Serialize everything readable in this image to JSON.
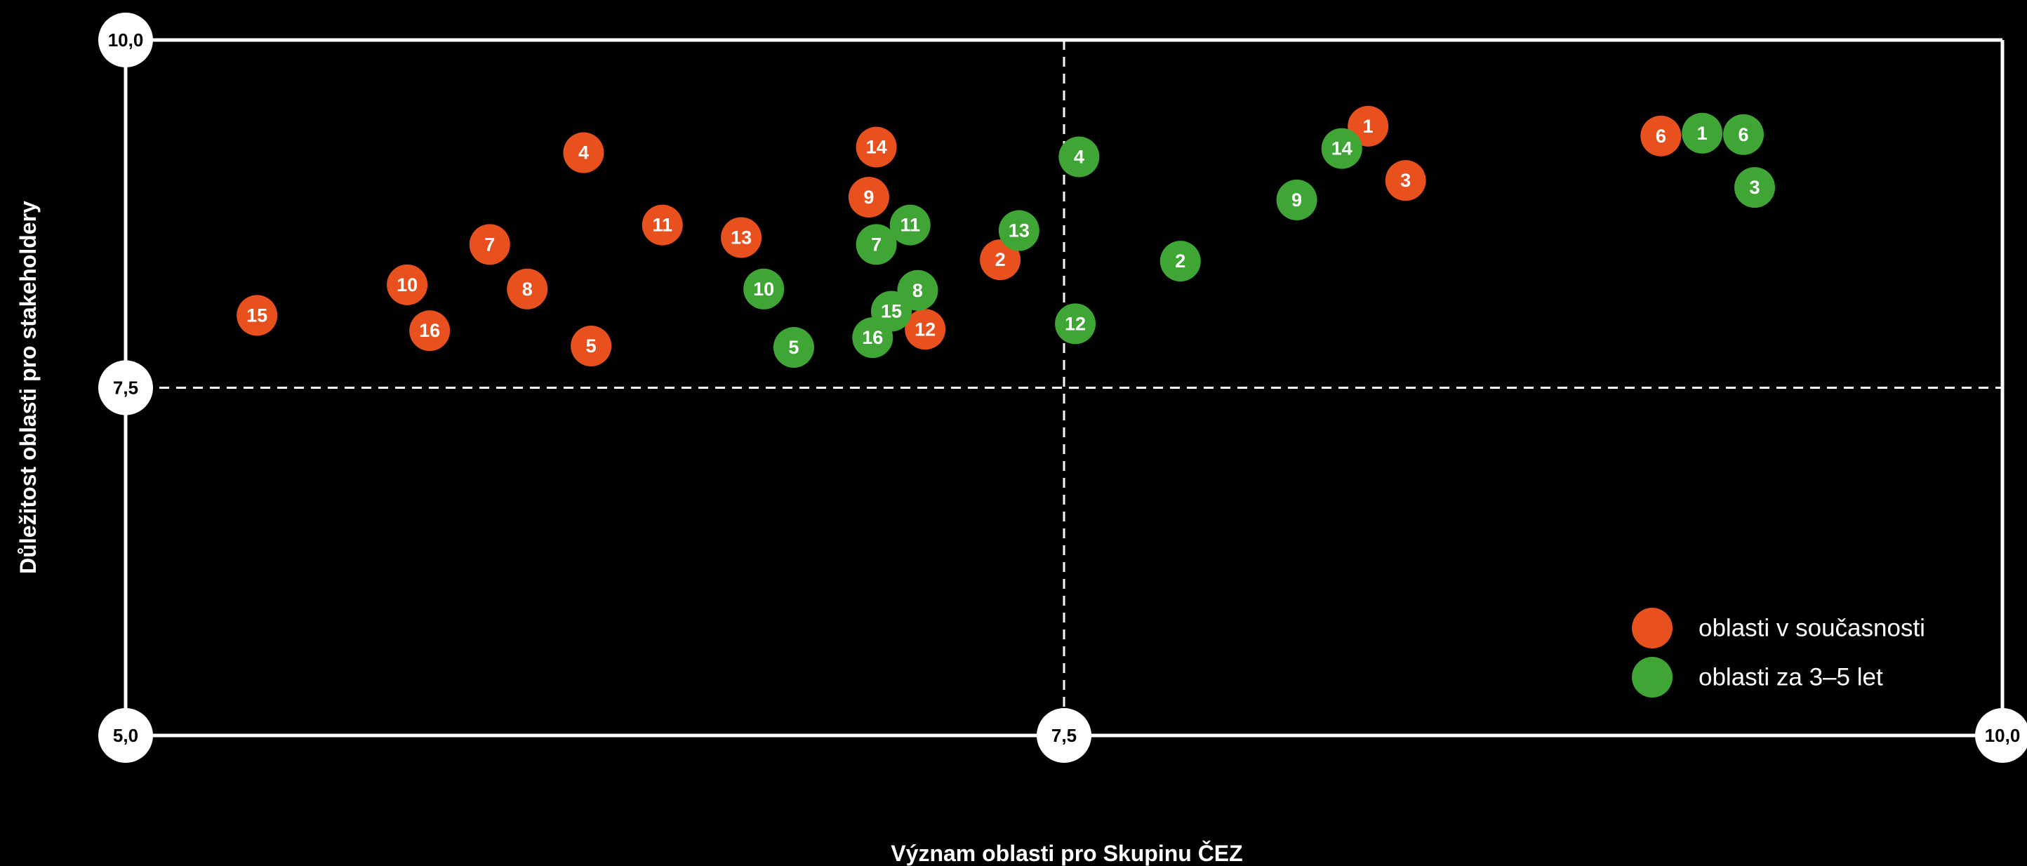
{
  "chart_data": {
    "type": "scatter",
    "xlabel": "Význam oblasti pro Skupinu ČEZ",
    "ylabel": "Důležitost oblasti pro stakeholdery",
    "xlim": [
      5.0,
      10.0
    ],
    "ylim": [
      5.0,
      10.0
    ],
    "xticks": [
      {
        "value": 5.0,
        "label": "5,0"
      },
      {
        "value": 7.5,
        "label": "7,5"
      },
      {
        "value": 10.0,
        "label": "10,0"
      }
    ],
    "yticks": [
      {
        "value": 5.0,
        "label": "5,0"
      },
      {
        "value": 7.5,
        "label": "7,5"
      },
      {
        "value": 10.0,
        "label": "10,0"
      }
    ],
    "legend": "lower right",
    "series": [
      {
        "name": "oblasti v současnosti",
        "color": "#e8501e",
        "labels": [
          "1",
          "2",
          "3",
          "4",
          "5",
          "6",
          "7",
          "8",
          "9",
          "10",
          "11",
          "12",
          "13",
          "14",
          "15",
          "16"
        ],
        "x": [
          8.31,
          7.33,
          8.41,
          6.22,
          6.24,
          9.09,
          5.97,
          6.07,
          6.98,
          5.75,
          6.43,
          7.13,
          6.64,
          7.0,
          5.35,
          5.81
        ],
        "values": [
          9.38,
          8.42,
          8.99,
          9.19,
          7.8,
          9.31,
          8.53,
          8.21,
          8.87,
          8.24,
          8.67,
          7.92,
          8.58,
          9.23,
          8.02,
          7.91
        ]
      },
      {
        "name": "oblasti za 3–5 let",
        "color": "#3fa535",
        "labels": [
          "1",
          "2",
          "3",
          "4",
          "5",
          "6",
          "7",
          "8",
          "9",
          "10",
          "11",
          "12",
          "13",
          "14",
          "15",
          "16"
        ],
        "x": [
          9.2,
          7.81,
          9.34,
          7.54,
          6.78,
          9.31,
          7.0,
          7.11,
          8.12,
          6.7,
          7.09,
          7.53,
          7.38,
          8.24,
          7.04,
          6.99
        ],
        "values": [
          9.33,
          8.41,
          8.94,
          9.16,
          7.79,
          9.32,
          8.53,
          8.2,
          8.85,
          8.21,
          8.67,
          7.96,
          8.63,
          9.22,
          8.05,
          7.86
        ]
      }
    ]
  }
}
